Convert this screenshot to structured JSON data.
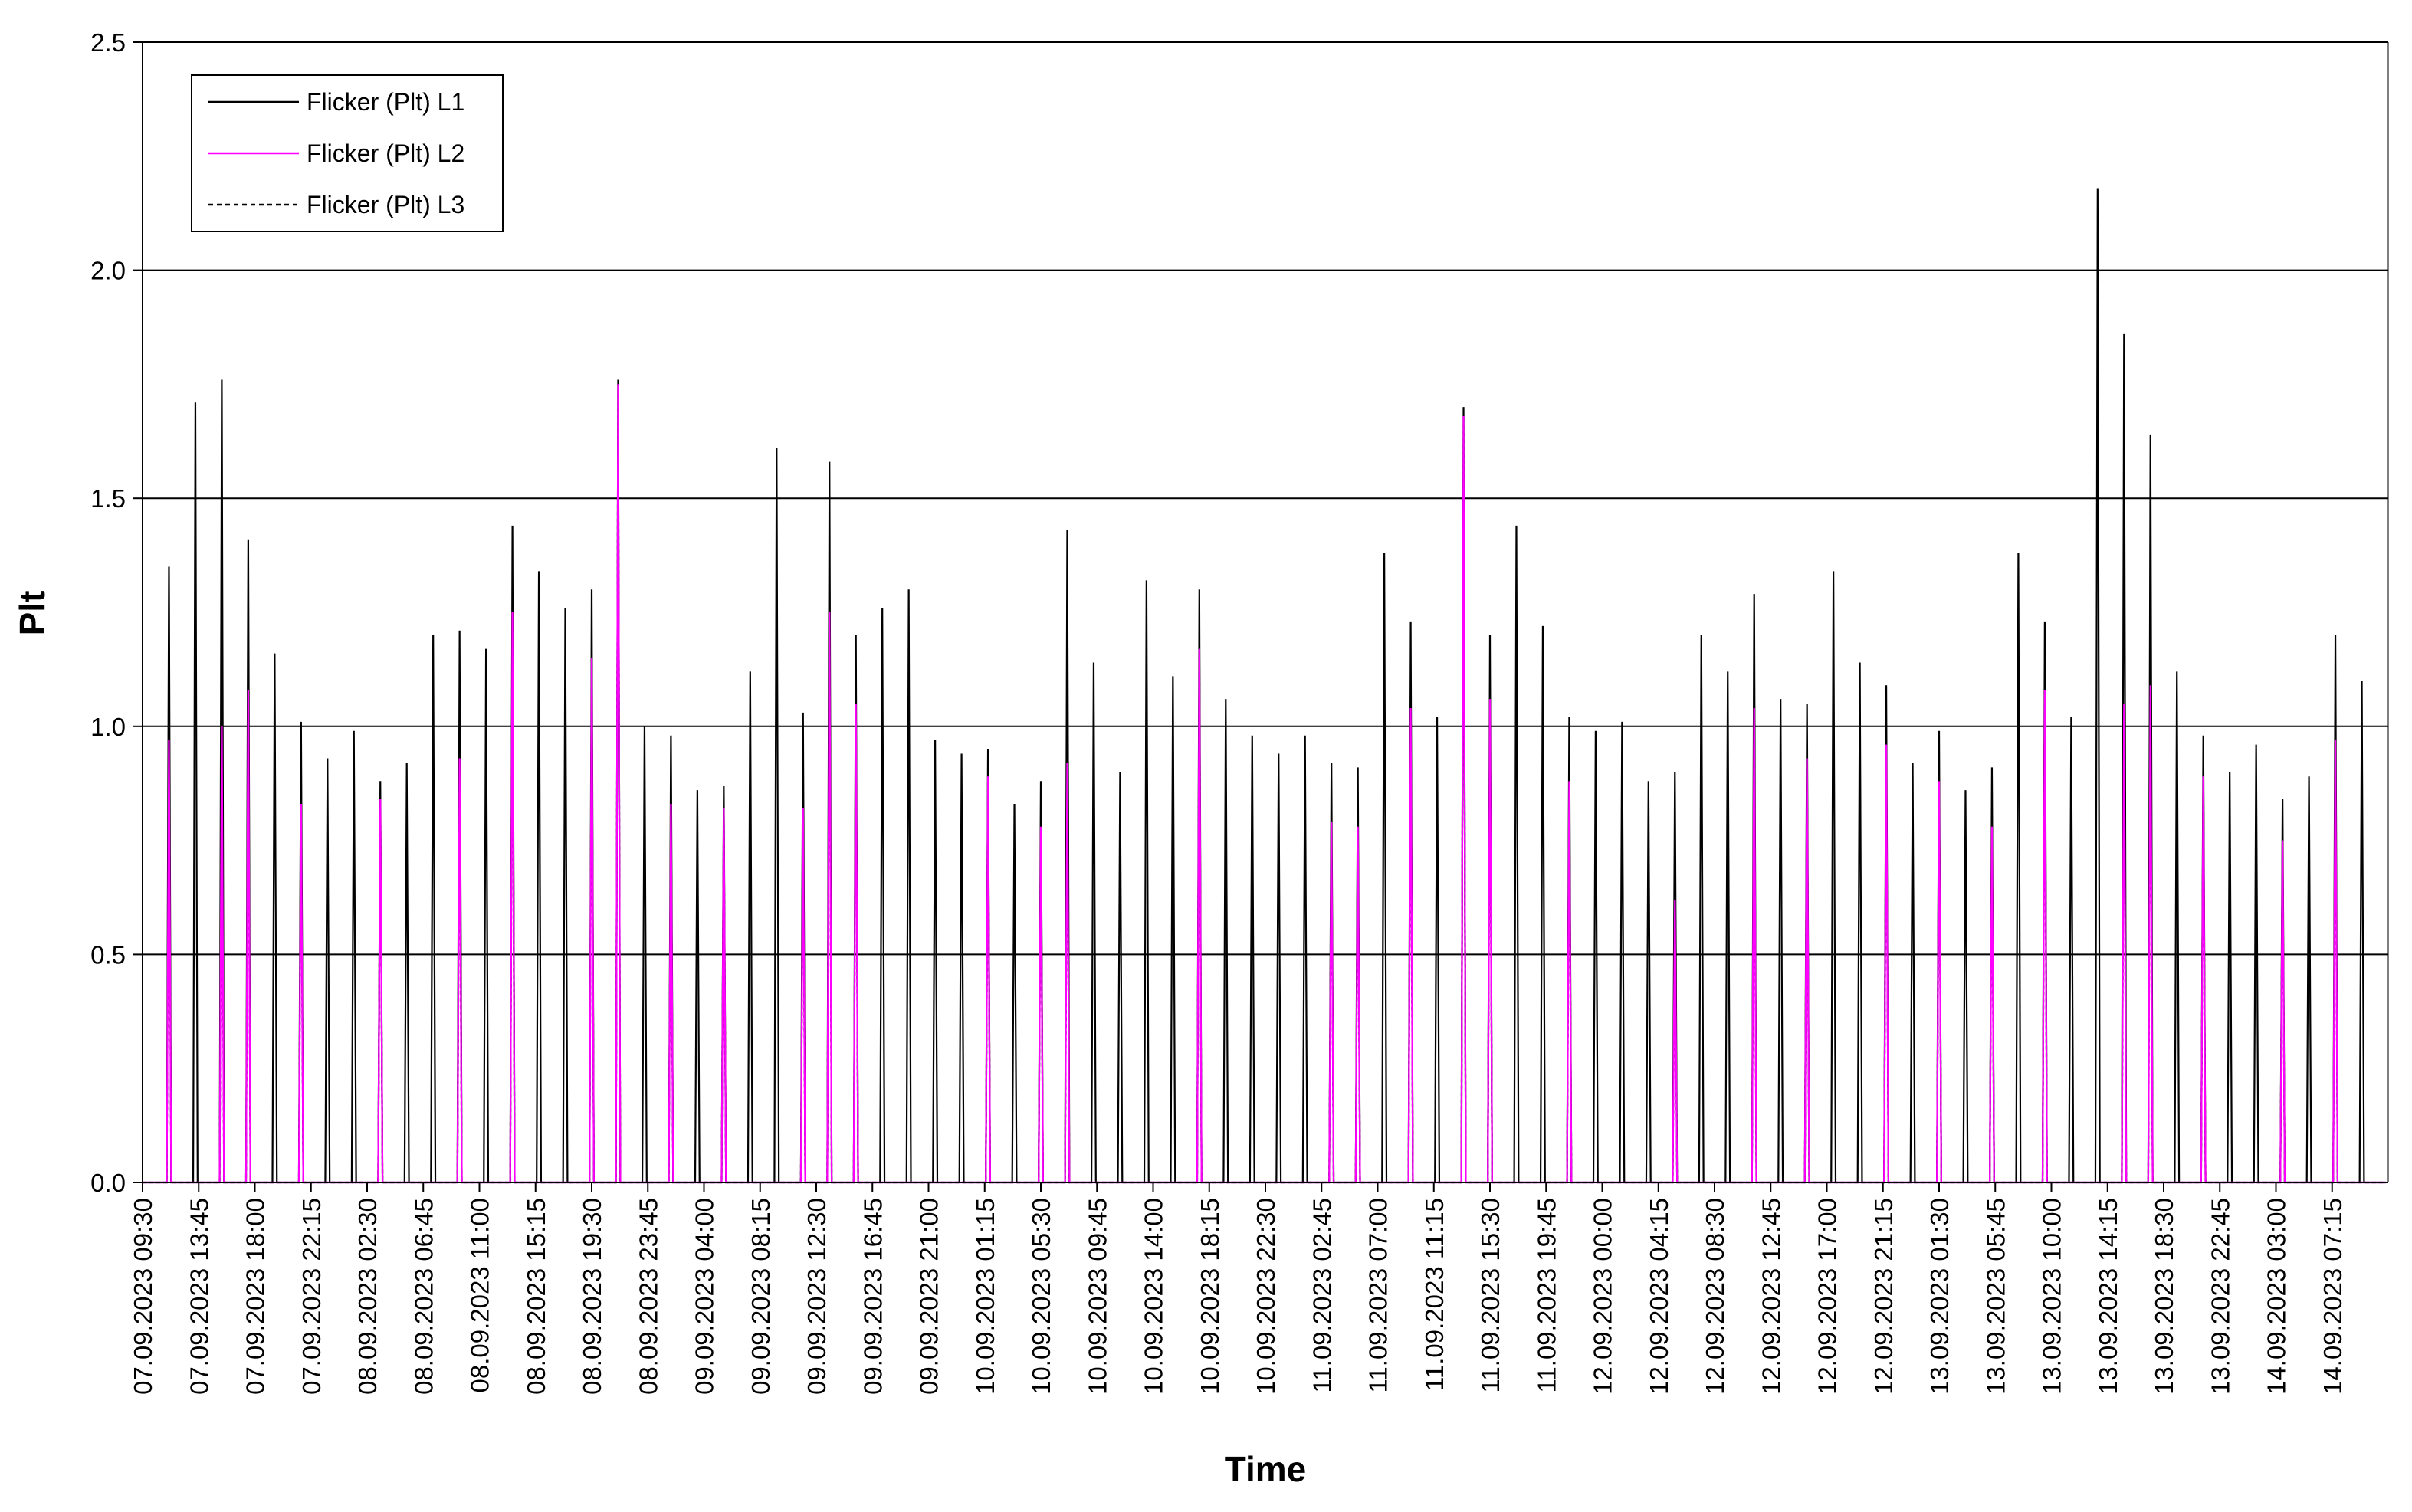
{
  "chart_data": {
    "type": "line",
    "title": "",
    "xlabel": "Time",
    "ylabel": "Plt",
    "ylim": [
      0,
      2.5
    ],
    "yticks": [
      "0.0",
      "0.5",
      "1.0",
      "1.5",
      "2.0",
      "2.5"
    ],
    "grid": "horizontal major gridlines",
    "legend_position": "top-left",
    "x_tick_labels": [
      "07.09.2023 09:30",
      "07.09.2023 13:45",
      "07.09.2023 18:00",
      "07.09.2023 22:15",
      "08.09.2023 02:30",
      "08.09.2023 06:45",
      "08.09.2023 11:00",
      "08.09.2023 15:15",
      "08.09.2023 19:30",
      "08.09.2023 23:45",
      "09.09.2023 04:00",
      "09.09.2023 08:15",
      "09.09.2023 12:30",
      "09.09.2023 16:45",
      "09.09.2023 21:00",
      "10.09.2023 01:15",
      "10.09.2023 05:30",
      "10.09.2023 09:45",
      "10.09.2023 14:00",
      "10.09.2023 18:15",
      "10.09.2023 22:30",
      "11.09.2023 02:45",
      "11.09.2023 07:00",
      "11.09.2023 11:15",
      "11.09.2023 15:30",
      "11.09.2023 19:45",
      "12.09.2023 00:00",
      "12.09.2023 04:15",
      "12.09.2023 08:30",
      "12.09.2023 12:45",
      "12.09.2023 17:00",
      "12.09.2023 21:15",
      "13.09.2023 01:30",
      "13.09.2023 05:45",
      "13.09.2023 10:00",
      "13.09.2023 14:15",
      "13.09.2023 18:30",
      "13.09.2023 22:45",
      "14.09.2023 03:00",
      "14.09.2023 07:15"
    ],
    "x_start": "07.09.2023 09:30",
    "x_end": "14.09.2023 11:30",
    "x_interval_minutes": 10,
    "spike_times": [
      "07.09.2023 11:30",
      "07.09.2023 13:30",
      "07.09.2023 15:30",
      "07.09.2023 17:30",
      "07.09.2023 19:30",
      "07.09.2023 21:30",
      "07.09.2023 23:30",
      "08.09.2023 01:30",
      "08.09.2023 03:30",
      "08.09.2023 05:30",
      "08.09.2023 07:30",
      "08.09.2023 09:30",
      "08.09.2023 11:30",
      "08.09.2023 13:30",
      "08.09.2023 15:30",
      "08.09.2023 17:30",
      "08.09.2023 19:30",
      "08.09.2023 21:30",
      "08.09.2023 23:30",
      "09.09.2023 01:30",
      "09.09.2023 03:30",
      "09.09.2023 05:30",
      "09.09.2023 07:30",
      "09.09.2023 09:30",
      "09.09.2023 11:30",
      "09.09.2023 13:30",
      "09.09.2023 15:30",
      "09.09.2023 17:30",
      "09.09.2023 19:30",
      "09.09.2023 21:30",
      "09.09.2023 23:30",
      "10.09.2023 01:30",
      "10.09.2023 03:30",
      "10.09.2023 05:30",
      "10.09.2023 07:30",
      "10.09.2023 09:30",
      "10.09.2023 11:30",
      "10.09.2023 13:30",
      "10.09.2023 15:30",
      "10.09.2023 17:30",
      "10.09.2023 19:30",
      "10.09.2023 21:30",
      "10.09.2023 23:30",
      "11.09.2023 01:30",
      "11.09.2023 03:30",
      "11.09.2023 05:30",
      "11.09.2023 07:30",
      "11.09.2023 09:30",
      "11.09.2023 11:30",
      "11.09.2023 13:30",
      "11.09.2023 15:30",
      "11.09.2023 17:30",
      "11.09.2023 19:30",
      "11.09.2023 21:30",
      "11.09.2023 23:30",
      "12.09.2023 01:30",
      "12.09.2023 03:30",
      "12.09.2023 05:30",
      "12.09.2023 07:30",
      "12.09.2023 09:30",
      "12.09.2023 11:30",
      "12.09.2023 13:30",
      "12.09.2023 15:30",
      "12.09.2023 17:30",
      "12.09.2023 19:30",
      "12.09.2023 21:30",
      "12.09.2023 23:30",
      "13.09.2023 01:30",
      "13.09.2023 03:30",
      "13.09.2023 05:30",
      "13.09.2023 07:30",
      "13.09.2023 09:30",
      "13.09.2023 11:30",
      "13.09.2023 13:30",
      "13.09.2023 15:30",
      "13.09.2023 17:30",
      "13.09.2023 19:30",
      "13.09.2023 21:30",
      "13.09.2023 23:30",
      "14.09.2023 01:30",
      "14.09.2023 03:30",
      "14.09.2023 05:30",
      "14.09.2023 07:30",
      "14.09.2023 09:30",
      "14.09.2023 11:30"
    ],
    "series": [
      {
        "name": "Flicker (Plt) L1",
        "color": "#000000",
        "style": "solid",
        "values": [
          1.35,
          1.71,
          1.76,
          1.41,
          1.16,
          1.01,
          0.93,
          0.99,
          0.88,
          0.92,
          1.2,
          1.21,
          1.17,
          1.44,
          1.34,
          1.26,
          1.3,
          1.76,
          1.0,
          0.98,
          0.86,
          0.87,
          1.12,
          1.61,
          1.03,
          1.58,
          1.2,
          1.26,
          1.3,
          0.97,
          0.94,
          0.95,
          0.83,
          0.88,
          1.43,
          1.14,
          0.9,
          1.32,
          1.11,
          1.3,
          1.06,
          0.98,
          0.94,
          0.98,
          0.92,
          0.91,
          1.38,
          1.23,
          1.02,
          1.7,
          1.2,
          1.44,
          1.22,
          1.02,
          0.99,
          1.01,
          0.88,
          0.9,
          1.2,
          1.12,
          1.29,
          1.06,
          1.05,
          1.34,
          1.14,
          1.09,
          0.92,
          0.99,
          0.86,
          0.91,
          1.38,
          1.23,
          1.02,
          2.18,
          1.86,
          1.64,
          1.12,
          0.98,
          0.9,
          0.96,
          0.84,
          0.89,
          1.2,
          1.1
        ]
      },
      {
        "name": "Flicker (Plt) L2",
        "color": "#ff00ff",
        "style": "solid",
        "values": [
          0.97,
          0.0,
          1.0,
          1.08,
          0.0,
          0.83,
          0.0,
          0.0,
          0.84,
          0.0,
          0.0,
          0.93,
          0.0,
          1.25,
          0.0,
          0.0,
          1.15,
          1.75,
          0.0,
          0.83,
          0.0,
          0.82,
          0.0,
          0.0,
          0.82,
          1.25,
          1.05,
          0.0,
          0.0,
          0.0,
          0.0,
          0.89,
          0.0,
          0.78,
          0.92,
          0.0,
          0.0,
          0.0,
          0.0,
          1.17,
          0.0,
          0.0,
          0.0,
          0.0,
          0.79,
          0.78,
          0.0,
          1.04,
          0.0,
          1.68,
          1.06,
          0.0,
          0.0,
          0.88,
          0.0,
          0.0,
          0.0,
          0.62,
          0.0,
          0.0,
          1.04,
          0.0,
          0.93,
          0.0,
          0.0,
          0.96,
          0.0,
          0.88,
          0.0,
          0.78,
          0.0,
          1.08,
          0.0,
          0.0,
          1.05,
          1.09,
          0.0,
          0.89,
          0.0,
          0.0,
          0.75,
          0.0,
          0.97,
          0.0
        ]
      },
      {
        "name": "Flicker (Plt) L3",
        "color": "#000000",
        "style": "dashed",
        "values": [
          0.97,
          0.0,
          1.0,
          1.08,
          0.0,
          0.83,
          0.0,
          0.0,
          0.84,
          0.0,
          0.0,
          0.93,
          0.0,
          1.25,
          0.0,
          0.0,
          1.15,
          1.75,
          0.0,
          0.83,
          0.0,
          0.82,
          0.0,
          0.0,
          0.82,
          1.25,
          1.05,
          0.0,
          0.0,
          0.0,
          0.0,
          0.89,
          0.0,
          0.78,
          0.92,
          0.0,
          0.0,
          0.0,
          0.0,
          1.17,
          0.0,
          0.0,
          0.0,
          0.0,
          0.79,
          0.78,
          0.0,
          1.04,
          0.0,
          1.68,
          1.06,
          0.0,
          0.0,
          0.88,
          0.0,
          0.0,
          0.0,
          0.62,
          0.0,
          0.0,
          1.04,
          0.0,
          0.93,
          0.0,
          0.0,
          0.96,
          0.0,
          0.88,
          0.0,
          0.78,
          0.0,
          1.08,
          0.0,
          0.0,
          1.05,
          1.09,
          0.0,
          0.89,
          0.0,
          0.0,
          0.75,
          0.0,
          0.97,
          0.0
        ]
      }
    ]
  }
}
